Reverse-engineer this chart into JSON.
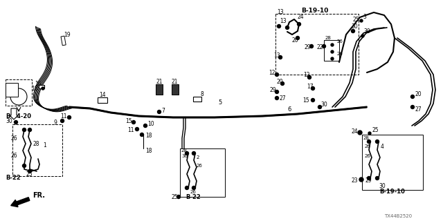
{
  "bg_color": "#ffffff",
  "diagram_code": "TX44B2520",
  "figsize": [
    6.4,
    3.2
  ],
  "dpi": 100,
  "labels": {
    "fr": "FR.",
    "b2420": "B-24-20",
    "b22_left": "B-22",
    "b22_bot": "B-22",
    "b1910_top": "B-19-10",
    "b1910_bot": "B-19-10"
  }
}
